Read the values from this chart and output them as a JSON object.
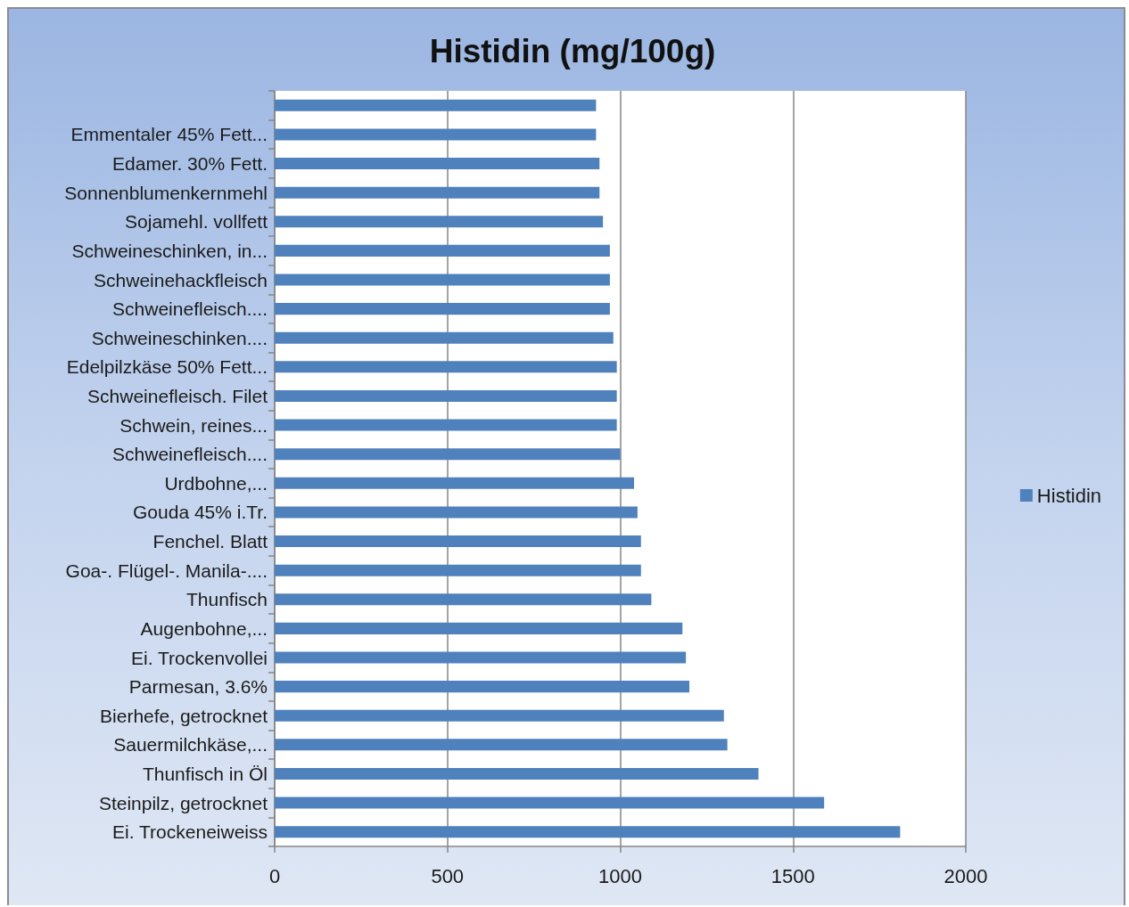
{
  "chart_data": {
    "type": "bar",
    "orientation": "horizontal",
    "title": "Histidin (mg/100g)",
    "categories": [
      null,
      "Emmentaler 45% Fett...",
      "Edamer. 30% Fett.",
      "Sonnenblumenkernmehl",
      "Sojamehl. vollfett",
      "Schweineschinken, in...",
      "Schweinehackfleisch",
      "Schweinefleisch....",
      "Schweineschinken....",
      "Edelpilzkäse 50% Fett...",
      "Schweinefleisch. Filet",
      "Schwein, reines...",
      "Schweinefleisch....",
      "Urdbohne,...",
      "Gouda 45% i.Tr.",
      "Fenchel. Blatt",
      "Goa-. Flügel-. Manila-....",
      "Thunfisch",
      "Augenbohne,...",
      "Ei. Trockenvollei",
      "Parmesan, 3.6%",
      "Bierhefe, getrocknet",
      "Sauermilchkäse,...",
      "Thunfisch in Öl",
      "Steinpilz, getrocknet",
      "Ei. Trockeneiweiss"
    ],
    "series": [
      {
        "name": "Histidin",
        "color": "#4f81bd",
        "values": [
          930,
          930,
          940,
          940,
          950,
          970,
          970,
          970,
          980,
          990,
          990,
          990,
          1000,
          1040,
          1050,
          1060,
          1060,
          1090,
          1180,
          1190,
          1200,
          1300,
          1310,
          1400,
          1590,
          1810
        ]
      }
    ],
    "xlim": [
      0,
      2000
    ],
    "xticks": [
      0,
      500,
      1000,
      1500,
      2000
    ],
    "grid": "x",
    "legend": "right"
  }
}
